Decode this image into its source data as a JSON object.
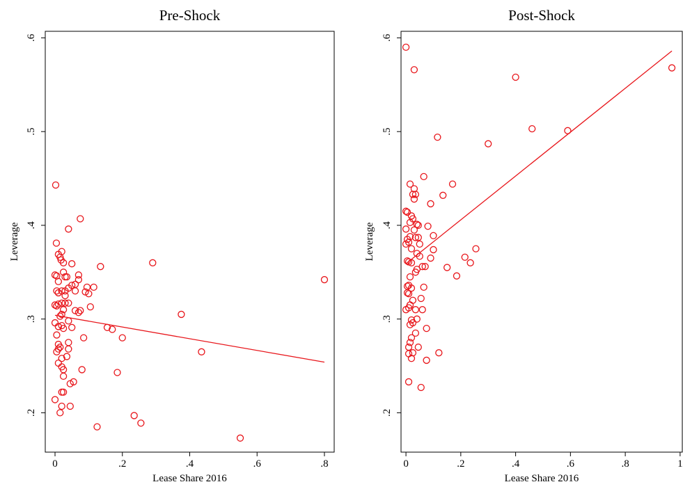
{
  "chart_data": [
    {
      "type": "scatter",
      "title": "Pre-Shock",
      "x_label": "Lease Share 2016",
      "y_label": "Leverage",
      "color": "#e8161b",
      "xlim": [
        -0.029,
        0.829
      ],
      "ylim": [
        0.158,
        0.607
      ],
      "xticks": [
        0,
        {
          "value": 0.2,
          "label": ".2"
        },
        {
          "value": 0.4,
          "label": ".4"
        },
        {
          "value": 0.6,
          "label": ".6"
        },
        {
          "value": 0.8,
          "label": ".8"
        }
      ],
      "yticks": [
        {
          "value": 0.2,
          "label": ".2"
        },
        {
          "value": 0.3,
          "label": ".3"
        },
        {
          "value": 0.4,
          "label": ".4"
        },
        {
          "value": 0.5,
          "label": ".5"
        },
        {
          "value": 0.6,
          "label": ".6"
        }
      ],
      "x": [
        0.002,
        0.004,
        0.01,
        0.015,
        0.02,
        0.018,
        0.025,
        0.075,
        0.04,
        0.0,
        0.005,
        0.01,
        0.025,
        0.03,
        0.035,
        0.05,
        0.07,
        0.07,
        0.06,
        0.05,
        0.04,
        0.03,
        0.005,
        0.01,
        0.02,
        0.06,
        0.095,
        0.115,
        0.135,
        0.29,
        0.09,
        0.1,
        0.03,
        0.0,
        0.005,
        0.01,
        0.02,
        0.03,
        0.04,
        0.025,
        0.06,
        0.075,
        0.07,
        0.105,
        0.015,
        0.02,
        0.04,
        0.0,
        0.01,
        0.02,
        0.025,
        0.05,
        0.155,
        0.17,
        0.375,
        0.8,
        0.005,
        0.085,
        0.2,
        0.01,
        0.01,
        0.015,
        0.04,
        0.04,
        0.005,
        0.435,
        0.02,
        0.035,
        0.01,
        0.02,
        0.025,
        0.08,
        0.185,
        0.025,
        0.055,
        0.045,
        0.02,
        0.025,
        0.0,
        0.02,
        0.045,
        0.015,
        0.235,
        0.255,
        0.125,
        0.55
      ],
      "values": [
        0.443,
        0.381,
        0.369,
        0.366,
        0.372,
        0.363,
        0.36,
        0.407,
        0.396,
        0.347,
        0.346,
        0.34,
        0.35,
        0.345,
        0.345,
        0.359,
        0.347,
        0.342,
        0.337,
        0.336,
        0.333,
        0.33,
        0.33,
        0.328,
        0.33,
        0.33,
        0.334,
        0.334,
        0.356,
        0.36,
        0.329,
        0.327,
        0.325,
        0.315,
        0.314,
        0.316,
        0.317,
        0.317,
        0.317,
        0.31,
        0.309,
        0.309,
        0.307,
        0.313,
        0.303,
        0.305,
        0.298,
        0.296,
        0.292,
        0.293,
        0.29,
        0.291,
        0.291,
        0.289,
        0.305,
        0.342,
        0.283,
        0.28,
        0.28,
        0.273,
        0.268,
        0.27,
        0.275,
        0.268,
        0.265,
        0.265,
        0.258,
        0.26,
        0.253,
        0.249,
        0.246,
        0.246,
        0.243,
        0.239,
        0.233,
        0.231,
        0.222,
        0.222,
        0.214,
        0.207,
        0.207,
        0.2,
        0.197,
        0.189,
        0.185,
        0.173
      ],
      "fit_line": {
        "x": [
          0,
          0.8
        ],
        "values": [
          0.304,
          0.254
        ]
      }
    },
    {
      "type": "scatter",
      "title": "Post-Shock",
      "x_label": "Lease Share 2016",
      "y_label": "Leverage",
      "color": "#e8161b",
      "xlim": [
        -0.018,
        1.008
      ],
      "ylim": [
        0.158,
        0.607
      ],
      "xticks": [
        0,
        {
          "value": 0.2,
          "label": ".2"
        },
        {
          "value": 0.4,
          "label": ".4"
        },
        {
          "value": 0.6,
          "label": ".6"
        },
        {
          "value": 0.8,
          "label": ".8"
        },
        1
      ],
      "yticks": [
        {
          "value": 0.2,
          "label": ".2"
        },
        {
          "value": 0.3,
          "label": ".3"
        },
        {
          "value": 0.4,
          "label": ".4"
        },
        {
          "value": 0.5,
          "label": ".5"
        },
        {
          "value": 0.6,
          "label": ".6"
        }
      ],
      "x": [
        0.0,
        0.03,
        0.4,
        0.97,
        0.115,
        0.3,
        0.46,
        0.59,
        0.065,
        0.015,
        0.17,
        0.03,
        0.025,
        0.035,
        0.135,
        0.03,
        0.09,
        0.0,
        0.005,
        0.02,
        0.025,
        0.015,
        0.04,
        0.045,
        0.08,
        0.0,
        0.03,
        0.1,
        0.005,
        0.015,
        0.035,
        0.045,
        0.0,
        0.01,
        0.05,
        0.02,
        0.04,
        0.05,
        0.1,
        0.255,
        0.215,
        0.235,
        0.005,
        0.01,
        0.02,
        0.09,
        0.06,
        0.07,
        0.15,
        0.035,
        0.04,
        0.185,
        0.015,
        0.005,
        0.01,
        0.02,
        0.065,
        0.005,
        0.01,
        0.025,
        0.055,
        0.0,
        0.01,
        0.015,
        0.035,
        0.06,
        0.02,
        0.04,
        0.015,
        0.025,
        0.075,
        0.035,
        0.02,
        0.015,
        0.01,
        0.045,
        0.01,
        0.025,
        0.02,
        0.075,
        0.12,
        0.01,
        0.055
      ],
      "values": [
        0.59,
        0.566,
        0.558,
        0.568,
        0.494,
        0.487,
        0.503,
        0.501,
        0.452,
        0.444,
        0.444,
        0.439,
        0.433,
        0.433,
        0.432,
        0.428,
        0.423,
        0.415,
        0.414,
        0.41,
        0.407,
        0.403,
        0.401,
        0.4,
        0.399,
        0.396,
        0.395,
        0.389,
        0.385,
        0.388,
        0.387,
        0.387,
        0.38,
        0.382,
        0.38,
        0.375,
        0.37,
        0.367,
        0.374,
        0.375,
        0.366,
        0.36,
        0.362,
        0.361,
        0.36,
        0.365,
        0.356,
        0.356,
        0.355,
        0.35,
        0.353,
        0.346,
        0.345,
        0.335,
        0.336,
        0.333,
        0.334,
        0.328,
        0.327,
        0.32,
        0.322,
        0.31,
        0.312,
        0.315,
        0.31,
        0.31,
        0.299,
        0.3,
        0.294,
        0.296,
        0.29,
        0.285,
        0.28,
        0.275,
        0.27,
        0.27,
        0.263,
        0.264,
        0.258,
        0.256,
        0.264,
        0.233,
        0.227
      ],
      "fit_line": {
        "x": [
          0,
          0.97
        ],
        "values": [
          0.359,
          0.586
        ]
      }
    }
  ]
}
